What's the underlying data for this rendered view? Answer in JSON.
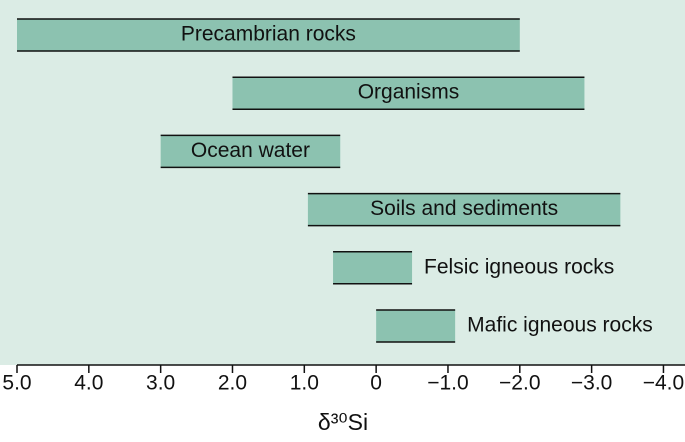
{
  "chart_data": {
    "type": "range_bar",
    "categories": [
      "Precambrian rocks",
      "Organisms",
      "Ocean water",
      "Soils and sediments",
      "Felsic igneous rocks",
      "Mafic igneous rocks"
    ],
    "start": [
      5.0,
      2.0,
      3.0,
      0.95,
      0.6,
      0
    ],
    "end": [
      -2.0,
      -2.9,
      0.5,
      -3.4,
      -0.5,
      -1.1
    ],
    "color": "#8cc2b0",
    "background": "#dbece5",
    "xlim": [
      5.0,
      -4.3
    ],
    "xticks": [
      {
        "value": 5,
        "label": "5.0"
      },
      {
        "value": 4,
        "label": "4.0"
      },
      {
        "value": 3,
        "label": "3.0"
      },
      {
        "value": 2,
        "label": "2.0"
      },
      {
        "value": 1,
        "label": "1.0"
      },
      0,
      {
        "value": -1,
        "label": "−1.0"
      },
      {
        "value": -2,
        "label": "−2.0"
      },
      {
        "value": -3,
        "label": "−3.0"
      },
      {
        "value": -4,
        "label": "−4.0"
      }
    ],
    "x_label": "δ³⁰Si"
  }
}
